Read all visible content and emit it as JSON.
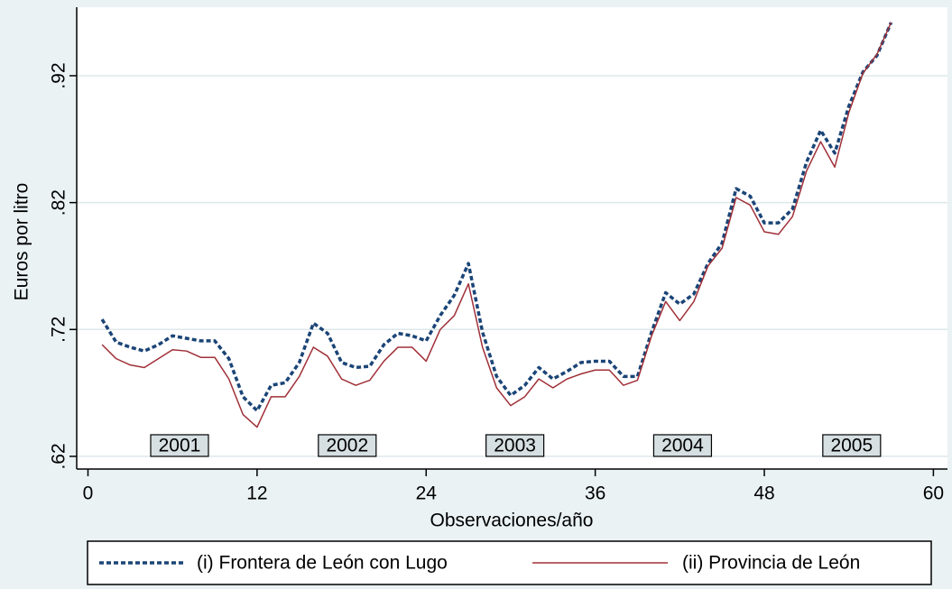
{
  "chart_data": {
    "type": "line",
    "xlabel": "Observaciones/año",
    "ylabel": "Euros por litro",
    "x": [
      1,
      2,
      3,
      4,
      5,
      6,
      7,
      8,
      9,
      10,
      11,
      12,
      13,
      14,
      15,
      16,
      17,
      18,
      19,
      20,
      21,
      22,
      23,
      24,
      25,
      26,
      27,
      28,
      29,
      30,
      31,
      32,
      33,
      34,
      35,
      36,
      37,
      38,
      39,
      40,
      41,
      42,
      43,
      44,
      45,
      46,
      47,
      48,
      49,
      50,
      51,
      52,
      53,
      54,
      55,
      56,
      57
    ],
    "series": [
      {
        "name": "(i) Frontera de León con Lugo",
        "color": "#1b4577",
        "style": "dash",
        "values": [
          0.728,
          0.71,
          0.706,
          0.703,
          0.708,
          0.715,
          0.713,
          0.711,
          0.711,
          0.697,
          0.667,
          0.656,
          0.676,
          0.678,
          0.694,
          0.725,
          0.717,
          0.694,
          0.69,
          0.691,
          0.708,
          0.717,
          0.715,
          0.711,
          0.731,
          0.747,
          0.772,
          0.718,
          0.683,
          0.668,
          0.676,
          0.69,
          0.681,
          0.687,
          0.694,
          0.695,
          0.695,
          0.683,
          0.683,
          0.718,
          0.749,
          0.74,
          0.748,
          0.772,
          0.788,
          0.831,
          0.825,
          0.804,
          0.804,
          0.815,
          0.852,
          0.877,
          0.859,
          0.896,
          0.923,
          0.936,
          0.962
        ]
      },
      {
        "name": "(ii) Provincia de León",
        "color": "#a03038",
        "style": "solid",
        "values": [
          0.708,
          0.697,
          0.692,
          0.69,
          0.697,
          0.704,
          0.703,
          0.698,
          0.698,
          0.681,
          0.653,
          0.643,
          0.667,
          0.667,
          0.683,
          0.706,
          0.699,
          0.681,
          0.676,
          0.68,
          0.695,
          0.706,
          0.706,
          0.695,
          0.72,
          0.731,
          0.756,
          0.706,
          0.674,
          0.66,
          0.667,
          0.681,
          0.674,
          0.681,
          0.685,
          0.688,
          0.688,
          0.676,
          0.68,
          0.715,
          0.742,
          0.727,
          0.742,
          0.77,
          0.784,
          0.824,
          0.818,
          0.797,
          0.795,
          0.809,
          0.845,
          0.868,
          0.848,
          0.891,
          0.922,
          0.937,
          0.962
        ]
      }
    ],
    "annotations": [
      {
        "text": "2001",
        "x": 6.5,
        "y": 0.6285
      },
      {
        "text": "2002",
        "x": 18.4,
        "y": 0.6285
      },
      {
        "text": "2003",
        "x": 30.3,
        "y": 0.6285
      },
      {
        "text": "2004",
        "x": 42.2,
        "y": 0.6285
      },
      {
        "text": "2005",
        "x": 54.2,
        "y": 0.6285
      }
    ],
    "xlim": [
      -0.8,
      61
    ],
    "ylim": [
      0.61,
      0.974
    ],
    "xticks": [
      0,
      12,
      24,
      36,
      48,
      60
    ],
    "yticks": [
      {
        "value": 0.62,
        "label": ".62"
      },
      {
        "value": 0.72,
        "label": ".72"
      },
      {
        "value": 0.82,
        "label": ".82"
      },
      {
        "value": 0.92,
        "label": ".92"
      }
    ],
    "grid": true,
    "legend": "bottom"
  }
}
